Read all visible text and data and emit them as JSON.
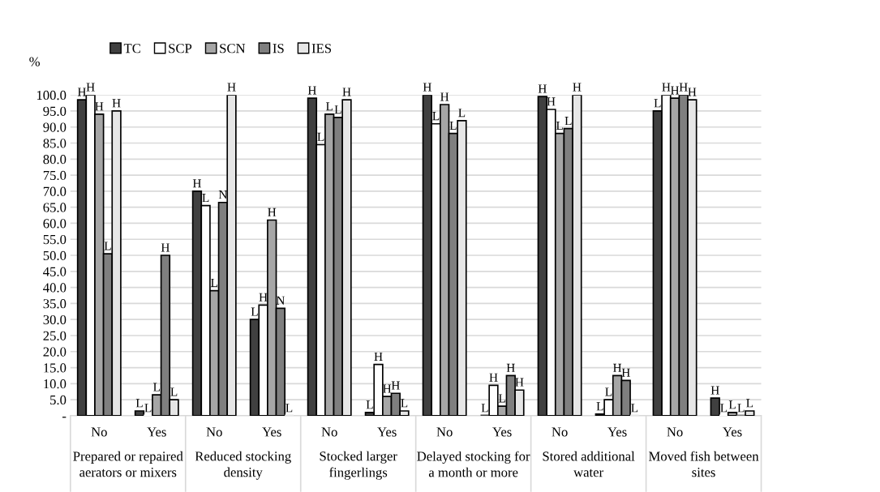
{
  "chart_data": {
    "type": "bar",
    "categories": [
      "No",
      "Yes",
      "No",
      "Yes",
      "No",
      "Yes",
      "No",
      "Yes",
      "No",
      "Yes",
      "No",
      "Yes"
    ],
    "series": [
      {
        "name": "TC",
        "color": "#404040",
        "values": [
          98.5,
          1.5,
          70,
          30,
          99,
          1,
          100,
          0,
          99.5,
          0.5,
          95,
          5.5
        ],
        "value_labels": [
          "H",
          "L",
          "H",
          "L",
          "H",
          "L",
          "H",
          "L",
          "H",
          "L",
          "L",
          "H"
        ]
      },
      {
        "name": "SCP",
        "color": "#ffffff",
        "values": [
          100,
          0,
          65.5,
          34.5,
          84.5,
          16,
          91,
          9.5,
          95.5,
          5,
          100,
          0
        ],
        "value_labels": [
          "H",
          "L",
          "L",
          "H",
          "L",
          "H",
          "L",
          "H",
          "H",
          "L",
          "H",
          "L"
        ]
      },
      {
        "name": "SCN",
        "color": "#a6a6a6",
        "values": [
          94,
          6.5,
          39,
          61,
          94,
          6,
          97,
          3,
          88,
          12.5,
          99,
          1
        ],
        "value_labels": [
          "H",
          "L",
          "L",
          "H",
          "L",
          "H",
          "H",
          "L",
          "L",
          "H",
          "H",
          "L"
        ]
      },
      {
        "name": "IS",
        "color": "#7f7f7f",
        "values": [
          50.5,
          50,
          66.5,
          33.5,
          93,
          7,
          88,
          12.5,
          89.5,
          11,
          100,
          0
        ],
        "value_labels": [
          "L",
          "H",
          "N",
          "N",
          "L",
          "H",
          "L",
          "H",
          "L",
          "H",
          "H",
          "L"
        ]
      },
      {
        "name": "IES",
        "color": "#e6e6e6",
        "values": [
          95,
          5,
          100,
          0,
          98.5,
          1.5,
          92,
          8,
          100,
          0,
          98.5,
          1.5
        ],
        "value_labels": [
          "H",
          "L",
          "H",
          "L",
          "H",
          "L",
          "L",
          "H",
          "H",
          "L",
          "H",
          "L"
        ]
      }
    ],
    "ylabel": "%",
    "ylim": [
      0,
      100
    ],
    "yticks": [
      {
        "value": 0,
        "label": "-"
      },
      {
        "value": 5,
        "label": "5.0"
      },
      {
        "value": 10,
        "label": "10.0"
      },
      {
        "value": 15,
        "label": "15.0"
      },
      {
        "value": 20,
        "label": "20.0"
      },
      {
        "value": 25,
        "label": "25.0"
      },
      {
        "value": 30,
        "label": "30.0"
      },
      {
        "value": 35,
        "label": "35.0"
      },
      {
        "value": 40,
        "label": "40.0"
      },
      {
        "value": 45,
        "label": "45.0"
      },
      {
        "value": 50,
        "label": "50.0"
      },
      {
        "value": 55,
        "label": "55.0"
      },
      {
        "value": 60,
        "label": "60.0"
      },
      {
        "value": 65,
        "label": "65.0"
      },
      {
        "value": 70,
        "label": "70.0"
      },
      {
        "value": 75,
        "label": "75.0"
      },
      {
        "value": 80,
        "label": "80.0"
      },
      {
        "value": 85,
        "label": "85.0"
      },
      {
        "value": 90,
        "label": "90.0"
      },
      {
        "value": 95,
        "label": "95.0"
      },
      {
        "value": 100,
        "label": "100.0"
      }
    ],
    "annotations": [
      "Prepared or repaired\naerators or mixers",
      "Reduced stocking\ndensity",
      "Stocked larger\nfingerlings",
      "Delayed stocking for\na month or more",
      "Stored additional\nwater",
      "Moved fish between\nsites"
    ],
    "grid": "y",
    "legend": "top"
  }
}
